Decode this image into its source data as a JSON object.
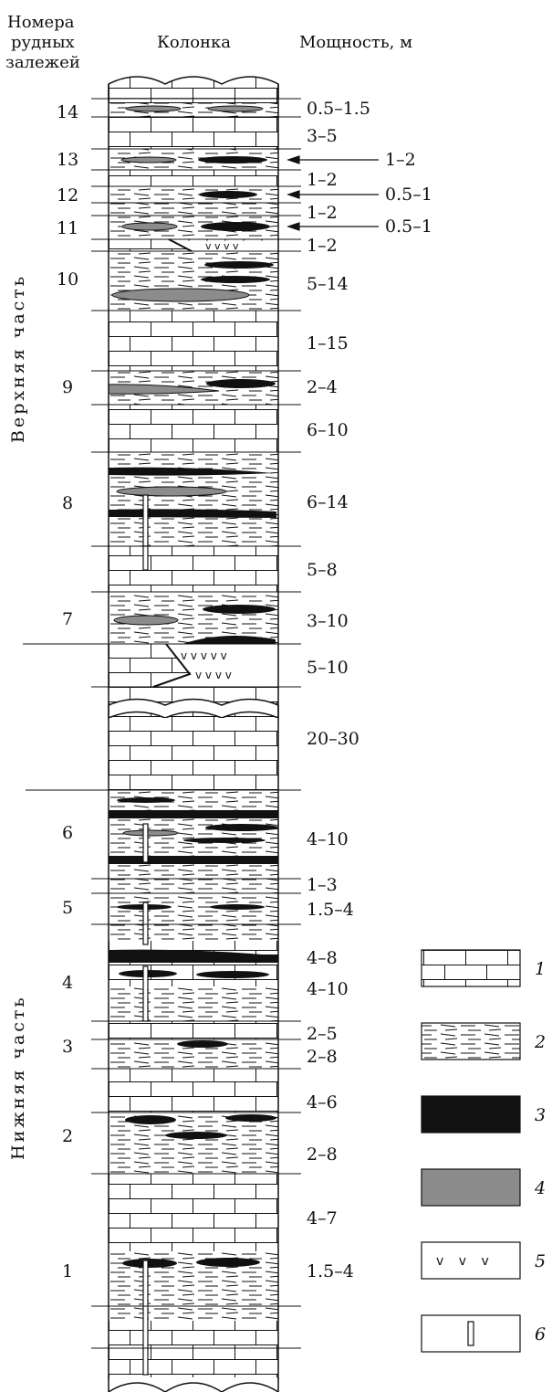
{
  "headers": {
    "deposits": [
      "Номера",
      "рудных",
      "залежей"
    ],
    "column": "Колонка",
    "thickness": "Мощность, м"
  },
  "parts": {
    "upper": "Верхняя часть",
    "lower": "Нижняя часть"
  },
  "deposit_numbers": [
    "14",
    "13",
    "12",
    "11",
    "10",
    "9",
    "8",
    "7",
    "6",
    "5",
    "4",
    "3",
    "2",
    "1"
  ],
  "thickness_values": [
    "0.5–1.5",
    "3–5",
    "1–2",
    "1–2",
    "0.5–1",
    "1–2",
    "0.5–1",
    "1–2",
    "5–14",
    "1–15",
    "2–4",
    "6–10",
    "6–14",
    "5–8",
    "3–10",
    "5–10",
    "20–30",
    "4–10",
    "1–3",
    "1.5–4",
    "4–8",
    "4–10",
    "2–5",
    "2–8",
    "4–6",
    "2–8",
    "4–7",
    "1.5–4"
  ],
  "legend": [
    {
      "num": "1",
      "pattern": "limestone"
    },
    {
      "num": "2",
      "pattern": "shale"
    },
    {
      "num": "3",
      "pattern": "black-ore"
    },
    {
      "num": "4",
      "pattern": "grey-ore"
    },
    {
      "num": "5",
      "pattern": "volcanic"
    },
    {
      "num": "6",
      "pattern": "borehole"
    }
  ],
  "colors": {
    "black_ore": "#111111",
    "grey_ore": "#8c8c8c",
    "line": "#111111"
  }
}
